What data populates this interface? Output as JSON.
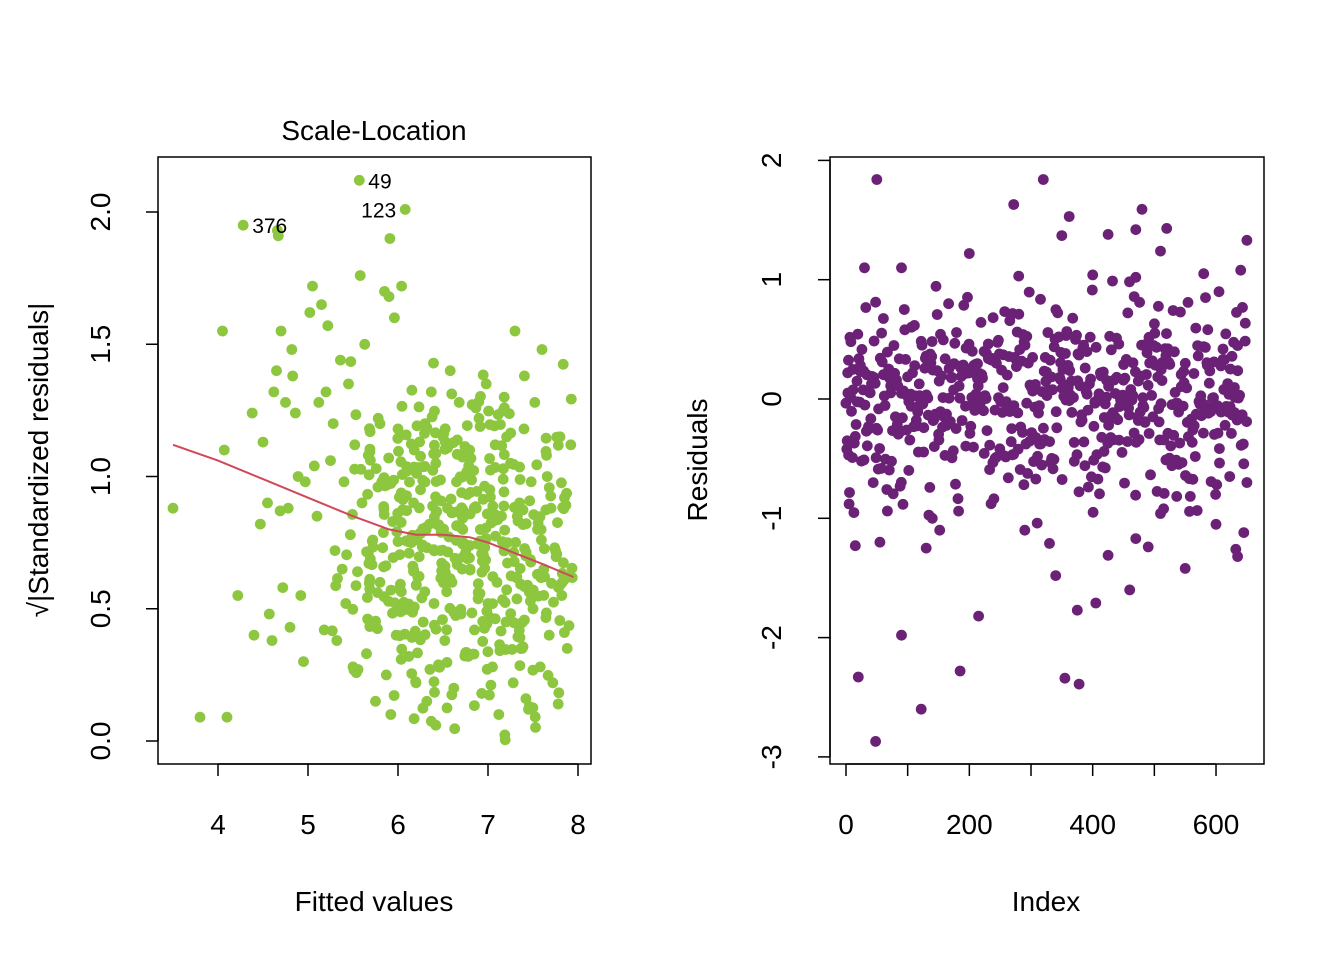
{
  "chart_data": [
    {
      "type": "scatter",
      "title": "Scale-Location",
      "xlabel": "Fitted values",
      "ylabel": "√|Standardized residuals|",
      "xlim": [
        3.4,
        8.0
      ],
      "ylim": [
        0.0,
        2.2
      ],
      "xticks": [
        4,
        5,
        6,
        7,
        8
      ],
      "yticks": [
        0.0,
        0.5,
        1.0,
        1.5,
        2.0
      ],
      "xtick_labels": [
        "4",
        "5",
        "6",
        "7",
        "8"
      ],
      "ytick_labels": [
        "0.0",
        "0.5",
        "1.0",
        "1.5",
        "2.0"
      ],
      "grid": false,
      "point_color": "#8DC63F",
      "line_color": "#D0485A",
      "annotations": [
        {
          "label": "49",
          "x": 5.57,
          "y": 2.12,
          "side": "right"
        },
        {
          "label": "123",
          "x": 6.08,
          "y": 2.01,
          "side": "left"
        },
        {
          "label": "376",
          "x": 4.28,
          "y": 1.95,
          "side": "right"
        }
      ],
      "smooth_line": [
        [
          3.5,
          1.12
        ],
        [
          4.0,
          1.06
        ],
        [
          4.5,
          0.99
        ],
        [
          5.0,
          0.92
        ],
        [
          5.5,
          0.85
        ],
        [
          5.9,
          0.8
        ],
        [
          6.2,
          0.78
        ],
        [
          6.5,
          0.78
        ],
        [
          6.8,
          0.77
        ],
        [
          7.0,
          0.75
        ],
        [
          7.3,
          0.71
        ],
        [
          7.6,
          0.67
        ],
        [
          7.95,
          0.62
        ]
      ],
      "points": [
        [
          3.5,
          0.88
        ],
        [
          3.8,
          0.09
        ],
        [
          4.1,
          0.09
        ],
        [
          4.05,
          1.55
        ],
        [
          4.07,
          1.1
        ],
        [
          4.22,
          0.55
        ],
        [
          4.38,
          1.24
        ],
        [
          4.4,
          0.4
        ],
        [
          4.47,
          0.82
        ],
        [
          4.5,
          1.13
        ],
        [
          4.55,
          0.9
        ],
        [
          4.57,
          0.48
        ],
        [
          4.6,
          0.38
        ],
        [
          4.62,
          1.32
        ],
        [
          4.65,
          1.4
        ],
        [
          4.66,
          1.93
        ],
        [
          4.67,
          1.91
        ],
        [
          4.69,
          0.87
        ],
        [
          4.7,
          1.55
        ],
        [
          4.72,
          0.58
        ],
        [
          4.75,
          1.28
        ],
        [
          4.78,
          0.88
        ],
        [
          4.8,
          0.43
        ],
        [
          4.82,
          1.48
        ],
        [
          4.83,
          1.38
        ],
        [
          4.86,
          1.24
        ],
        [
          4.89,
          1.0
        ],
        [
          4.92,
          0.55
        ],
        [
          4.95,
          0.3
        ],
        [
          4.97,
          0.98
        ],
        [
          5.02,
          1.62
        ],
        [
          5.05,
          1.72
        ],
        [
          5.07,
          1.04
        ],
        [
          5.1,
          0.85
        ],
        [
          5.12,
          1.28
        ],
        [
          5.15,
          1.65
        ],
        [
          5.18,
          0.42
        ],
        [
          5.2,
          1.32
        ],
        [
          5.22,
          1.57
        ],
        [
          5.25,
          1.06
        ],
        [
          5.28,
          1.2
        ],
        [
          5.3,
          0.72
        ],
        [
          5.32,
          0.38
        ],
        [
          5.36,
          1.44
        ],
        [
          5.38,
          0.65
        ],
        [
          5.4,
          0.98
        ],
        [
          5.42,
          0.52
        ],
        [
          5.45,
          1.35
        ],
        [
          5.47,
          0.78
        ],
        [
          5.5,
          0.28
        ],
        [
          5.52,
          1.12
        ],
        [
          5.55,
          0.64
        ],
        [
          5.58,
          1.76
        ],
        [
          5.6,
          0.9
        ],
        [
          5.63,
          1.5
        ],
        [
          5.65,
          0.33
        ],
        [
          5.67,
          1.08
        ],
        [
          5.7,
          0.44
        ],
        [
          5.72,
          0.76
        ],
        [
          5.75,
          0.15
        ],
        [
          5.78,
          1.22
        ],
        [
          5.8,
          0.6
        ],
        [
          5.82,
          0.98
        ],
        [
          5.85,
          1.7
        ],
        [
          5.87,
          0.25
        ],
        [
          5.9,
          1.68
        ],
        [
          5.91,
          1.9
        ],
        [
          5.92,
          0.1
        ],
        [
          5.94,
          0.83
        ],
        [
          5.96,
          1.6
        ],
        [
          5.98,
          0.4
        ],
        [
          6.0,
          1.18
        ],
        [
          6.02,
          0.58
        ],
        [
          6.04,
          1.72
        ],
        [
          6.06,
          0.92
        ],
        [
          6.1,
          1.02
        ],
        [
          6.12,
          0.32
        ],
        [
          6.15,
          0.75
        ],
        [
          6.18,
          1.1
        ],
        [
          6.2,
          0.22
        ],
        [
          6.22,
          0.62
        ],
        [
          6.25,
          0.95
        ],
        [
          6.28,
          0.45
        ],
        [
          6.3,
          1.2
        ],
        [
          6.32,
          0.15
        ],
        [
          6.35,
          0.82
        ],
        [
          6.37,
          1.32
        ],
        [
          6.4,
          0.52
        ],
        [
          6.42,
          1.05
        ],
        [
          6.45,
          0.28
        ],
        [
          6.47,
          0.72
        ],
        [
          6.5,
          1.15
        ],
        [
          6.52,
          0.38
        ],
        [
          6.55,
          0.88
        ],
        [
          6.58,
          1.4
        ],
        [
          6.6,
          0.6
        ],
        [
          6.62,
          0.2
        ],
        [
          6.65,
          0.98
        ],
        [
          6.68,
          1.28
        ],
        [
          6.7,
          0.48
        ],
        [
          6.72,
          0.8
        ],
        [
          6.75,
          1.1
        ],
        [
          6.78,
          0.32
        ],
        [
          6.8,
          0.65
        ],
        [
          6.82,
          1.02
        ],
        [
          6.85,
          0.42
        ],
        [
          6.87,
          0.88
        ],
        [
          6.9,
          1.22
        ],
        [
          6.93,
          0.18
        ],
        [
          6.95,
          0.7
        ],
        [
          6.98,
          1.35
        ],
        [
          7.0,
          0.52
        ],
        [
          7.02,
          0.95
        ],
        [
          7.05,
          0.28
        ],
        [
          7.08,
          1.12
        ],
        [
          7.1,
          0.6
        ],
        [
          7.12,
          0.1
        ],
        [
          7.15,
          0.85
        ],
        [
          7.18,
          1.3
        ],
        [
          7.2,
          0.45
        ],
        [
          7.22,
          0.75
        ],
        [
          7.25,
          1.05
        ],
        [
          7.28,
          0.22
        ],
        [
          7.3,
          1.55
        ],
        [
          7.32,
          0.62
        ],
        [
          7.35,
          0.9
        ],
        [
          7.38,
          0.35
        ],
        [
          7.4,
          1.18
        ],
        [
          7.42,
          0.7
        ],
        [
          7.45,
          0.12
        ],
        [
          7.48,
          0.98
        ],
        [
          7.5,
          0.5
        ],
        [
          7.52,
          1.28
        ],
        [
          7.55,
          0.8
        ],
        [
          7.58,
          0.28
        ],
        [
          7.6,
          1.48
        ],
        [
          7.62,
          0.65
        ],
        [
          7.65,
          1.08
        ],
        [
          7.68,
          0.4
        ],
        [
          7.7,
          0.88
        ],
        [
          7.72,
          0.22
        ],
        [
          7.75,
          0.72
        ],
        [
          7.78,
          0.14
        ],
        [
          7.8,
          1.15
        ],
        [
          7.82,
          0.55
        ],
        [
          7.85,
          0.92
        ],
        [
          7.88,
          0.35
        ],
        [
          7.92,
          1.12
        ],
        [
          6.08,
          2.01
        ],
        [
          5.57,
          2.12
        ],
        [
          4.28,
          1.95
        ]
      ],
      "density_clusters": [
        {
          "cx": 6.55,
          "cy": 0.78,
          "sx": 0.42,
          "sy": 0.32,
          "n": 210
        },
        {
          "cx": 7.3,
          "cy": 0.68,
          "sx": 0.38,
          "sy": 0.3,
          "n": 150
        },
        {
          "cx": 5.8,
          "cy": 0.72,
          "sx": 0.32,
          "sy": 0.3,
          "n": 70
        }
      ]
    },
    {
      "type": "scatter",
      "title": "",
      "xlabel": "Index",
      "ylabel": "Residuals",
      "xlim": [
        -10,
        660
      ],
      "ylim": [
        -3.05,
        2.05
      ],
      "xticks": [
        0,
        200,
        400,
        600
      ],
      "xtick_minor": [
        0,
        100,
        200,
        300,
        400,
        500,
        600
      ],
      "yticks": [
        -3,
        -2,
        -1,
        0,
        1,
        2
      ],
      "xtick_labels": [
        "0",
        "200",
        "400",
        "600"
      ],
      "ytick_labels": [
        "-3",
        "-2",
        "-1",
        "0",
        "1",
        "2"
      ],
      "grid": false,
      "point_color": "#6A2176",
      "n_points": 650,
      "points": [
        [
          50,
          1.84
        ],
        [
          320,
          1.84
        ],
        [
          272,
          1.63
        ],
        [
          480,
          1.59
        ],
        [
          362,
          1.53
        ],
        [
          520,
          1.43
        ],
        [
          470,
          1.42
        ],
        [
          425,
          1.38
        ],
        [
          350,
          1.37
        ],
        [
          650,
          1.33
        ],
        [
          510,
          1.24
        ],
        [
          200,
          1.22
        ],
        [
          30,
          1.1
        ],
        [
          90,
          1.1
        ],
        [
          640,
          1.08
        ],
        [
          580,
          1.05
        ],
        [
          400,
          1.04
        ],
        [
          470,
          1.02
        ],
        [
          280,
          1.03
        ],
        [
          650,
          -0.7
        ],
        [
          645,
          -1.12
        ],
        [
          632,
          -1.26
        ],
        [
          635,
          -1.32
        ],
        [
          600,
          -1.05
        ],
        [
          550,
          -1.42
        ],
        [
          515,
          -0.92
        ],
        [
          510,
          -0.96
        ],
        [
          490,
          -1.24
        ],
        [
          470,
          -1.17
        ],
        [
          460,
          -1.6
        ],
        [
          425,
          -1.31
        ],
        [
          405,
          -1.71
        ],
        [
          375,
          -1.77
        ],
        [
          355,
          -2.34
        ],
        [
          378,
          -2.39
        ],
        [
          340,
          -1.48
        ],
        [
          330,
          -1.21
        ],
        [
          310,
          -1.04
        ],
        [
          290,
          -1.1
        ],
        [
          215,
          -1.82
        ],
        [
          185,
          -2.28
        ],
        [
          152,
          -1.1
        ],
        [
          140,
          -1.0
        ],
        [
          130,
          -1.25
        ],
        [
          122,
          -2.6
        ],
        [
          90,
          -1.98
        ],
        [
          55,
          -1.2
        ],
        [
          48,
          -2.87
        ],
        [
          20,
          -2.33
        ],
        [
          15,
          -1.23
        ],
        [
          5,
          -0.88
        ],
        [
          2,
          -0.35
        ],
        [
          3,
          0.05
        ],
        [
          8,
          0.48
        ]
      ],
      "bands": [
        {
          "x0": 0,
          "x1": 650,
          "mean": 0.0,
          "sd": 0.42,
          "n": 596
        }
      ]
    }
  ]
}
